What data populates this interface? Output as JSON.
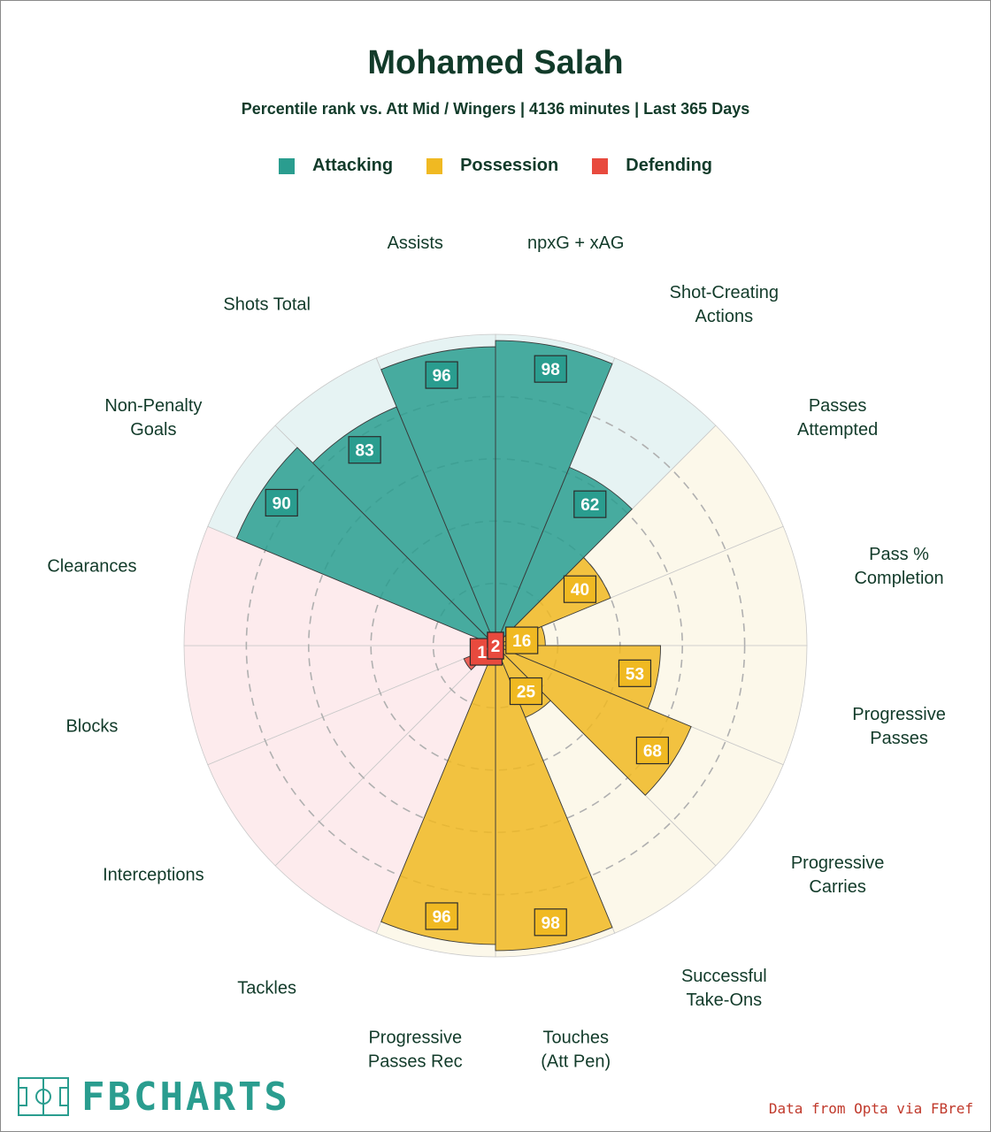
{
  "header": {
    "title": "Mohamed Salah",
    "subtitle": "Percentile rank vs. Att Mid / Wingers | 4136 minutes | Last 365 Days"
  },
  "legend": [
    {
      "label": "Attacking",
      "color": "#2a9d8f"
    },
    {
      "label": "Possession",
      "color": "#f0b922"
    },
    {
      "label": "Defending",
      "color": "#e84a3e"
    }
  ],
  "chart_data": {
    "type": "radar-bar",
    "title": "Mohamed Salah",
    "subtitle": "Percentile rank vs. Att Mid / Wingers | 4136 minutes | Last 365 Days",
    "rlim": [
      0,
      100
    ],
    "gridlines": [
      20,
      40,
      60,
      80
    ],
    "categories": [
      {
        "label": "npxG + xAG",
        "value": 98,
        "group": "Attacking"
      },
      {
        "label": "Shot-Creating Actions",
        "value": 62,
        "group": "Attacking"
      },
      {
        "label": "Passes Attempted",
        "value": 40,
        "group": "Possession"
      },
      {
        "label": "Pass Completion %",
        "value": 16,
        "group": "Possession"
      },
      {
        "label": "Progressive Passes",
        "value": 53,
        "group": "Possession"
      },
      {
        "label": "Progressive Carries",
        "value": 68,
        "group": "Possession"
      },
      {
        "label": "Successful Take-Ons",
        "value": 25,
        "group": "Possession"
      },
      {
        "label": "Touches (Att Pen)",
        "value": 98,
        "group": "Possession"
      },
      {
        "label": "Progressive Passes Rec",
        "value": 96,
        "group": "Possession"
      },
      {
        "label": "Tackles",
        "value": 1,
        "group": "Defending"
      },
      {
        "label": "Interceptions",
        "value": 11,
        "group": "Defending"
      },
      {
        "label": "Blocks",
        "value": 2,
        "group": "Defending"
      },
      {
        "label": "Clearances",
        "value": 2,
        "group": "Defending"
      },
      {
        "label": "Non-Penalty Goals",
        "value": 90,
        "group": "Attacking"
      },
      {
        "label": "Shots Total",
        "value": 83,
        "group": "Attacking"
      },
      {
        "label": "Assists",
        "value": 96,
        "group": "Attacking"
      }
    ]
  },
  "colors": {
    "Attacking": {
      "bar": "#2a9d8f",
      "bg": "#e6f3f3",
      "label": "#2a9d8f"
    },
    "Possession": {
      "bar": "#f0b922",
      "bg": "#fcf8ea",
      "label": "#f0b922"
    },
    "Defending": {
      "bar": "#e84a3e",
      "bg": "#fdebed",
      "label": "#e84a3e"
    }
  },
  "footer": {
    "logo_text": "FBCHARTS",
    "source": "Data from Opta via FBref"
  }
}
